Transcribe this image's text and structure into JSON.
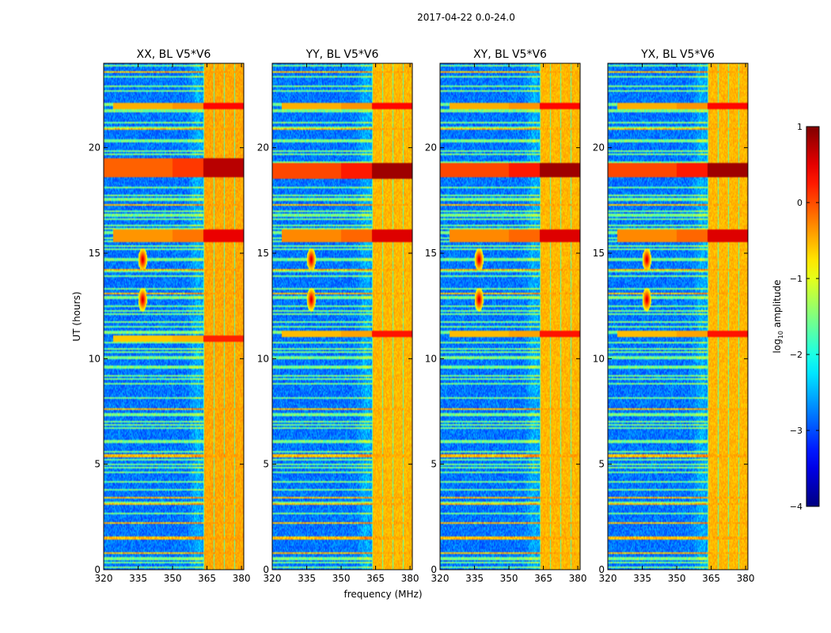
{
  "suptitle": "2017-04-22 0.0-24.0",
  "shared_xlabel": "frequency (MHz)",
  "shared_ylabel": "UT (hours)",
  "colorbar": {
    "label": "log10 amplitude",
    "label_main": "log",
    "label_sub": "10",
    "label_rest": " amplitude",
    "range": [
      -4,
      1
    ],
    "ticks": [
      1,
      0,
      -1,
      -2,
      -3,
      -4
    ],
    "tick_labels": [
      "1",
      "0",
      "−1",
      "−2",
      "−3",
      "−4"
    ],
    "colormap": "jet"
  },
  "chart_data": [
    {
      "type": "heatmap",
      "title": "XX, BL V5*V6",
      "xlabel": "frequency (MHz)",
      "ylabel": "UT (hours)",
      "xlim": [
        320,
        381
      ],
      "ylim": [
        0,
        24
      ],
      "xticks": [
        320,
        335,
        350,
        365,
        380
      ],
      "yticks": [
        0,
        5,
        10,
        15,
        20
      ],
      "xtick_labels": [
        "320",
        "335",
        "350",
        "365",
        "380"
      ],
      "ytick_labels": [
        "0",
        "5",
        "10",
        "15",
        "20"
      ],
      "band_strength": 1.0,
      "strong_rfi_bands": [
        [
          18.6,
          19.5,
          0.9
        ],
        [
          15.5,
          16.1,
          0.7
        ],
        [
          10.8,
          11.1,
          0.5
        ],
        [
          21.8,
          22.1,
          0.6
        ]
      ]
    },
    {
      "type": "heatmap",
      "title": "YY, BL V5*V6",
      "xlabel": "frequency (MHz)",
      "ylabel": "",
      "xlim": [
        320,
        381
      ],
      "ylim": [
        0,
        24
      ],
      "xticks": [
        320,
        335,
        350,
        365,
        380
      ],
      "yticks": [
        0,
        5,
        10,
        15,
        20
      ],
      "xtick_labels": [
        "320",
        "335",
        "350",
        "365",
        "380"
      ],
      "ytick_labels": [
        "0",
        "5",
        "10",
        "15",
        "20"
      ],
      "band_strength": 0.85,
      "strong_rfi_bands": [
        [
          18.5,
          19.3,
          1.0
        ],
        [
          15.5,
          16.1,
          0.75
        ],
        [
          11.0,
          11.3,
          0.55
        ],
        [
          21.8,
          22.1,
          0.6
        ]
      ]
    },
    {
      "type": "heatmap",
      "title": "XY, BL V5*V6",
      "xlabel": "",
      "ylabel": "",
      "xlim": [
        320,
        381
      ],
      "ylim": [
        0,
        24
      ],
      "xticks": [
        320,
        335,
        350,
        365,
        380
      ],
      "yticks": [
        0,
        5,
        10,
        15,
        20
      ],
      "xtick_labels": [
        "320",
        "335",
        "350",
        "365",
        "380"
      ],
      "ytick_labels": [
        "0",
        "5",
        "10",
        "15",
        "20"
      ],
      "band_strength": 0.85,
      "strong_rfi_bands": [
        [
          18.6,
          19.3,
          1.0
        ],
        [
          15.5,
          16.1,
          0.75
        ],
        [
          11.0,
          11.3,
          0.55
        ],
        [
          21.8,
          22.1,
          0.6
        ]
      ]
    },
    {
      "type": "heatmap",
      "title": "YX, BL V5*V6",
      "xlabel": "",
      "ylabel": "",
      "xlim": [
        320,
        381
      ],
      "ylim": [
        0,
        24
      ],
      "xticks": [
        320,
        335,
        350,
        365,
        380
      ],
      "yticks": [
        0,
        5,
        10,
        15,
        20
      ],
      "xtick_labels": [
        "320",
        "335",
        "350",
        "365",
        "380"
      ],
      "ytick_labels": [
        "0",
        "5",
        "10",
        "15",
        "20"
      ],
      "band_strength": 0.85,
      "strong_rfi_bands": [
        [
          18.6,
          19.3,
          1.0
        ],
        [
          15.5,
          16.1,
          0.75
        ],
        [
          11.0,
          11.3,
          0.55
        ],
        [
          21.8,
          22.1,
          0.6
        ]
      ]
    }
  ]
}
